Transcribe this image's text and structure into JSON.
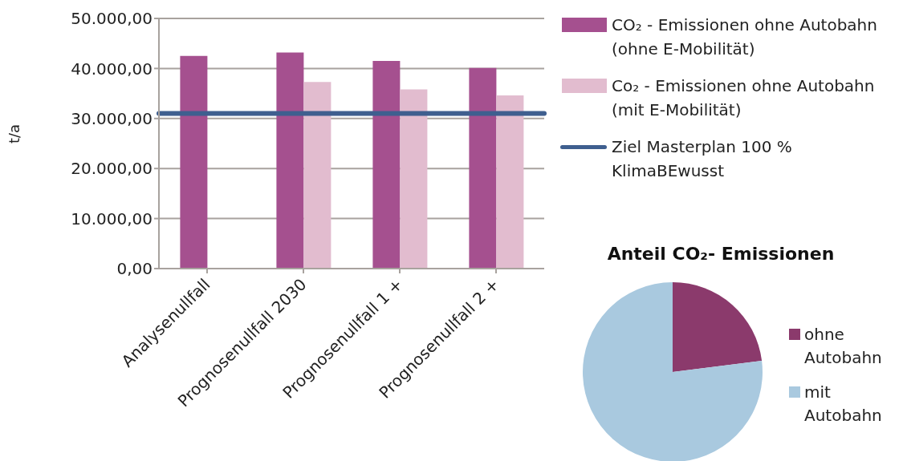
{
  "chart_data": [
    {
      "type": "bar",
      "ylabel": "t/a",
      "categories": [
        "Analysenullfall",
        "Prognosenullfall 2030",
        "Prognosenullfall 1 +",
        "Prognosenullfall 2 +"
      ],
      "series": [
        {
          "name": "CO₂ - Emissionen ohne Autobahn (ohne E-Mobilität)",
          "color": "#a5508f",
          "values": [
            42500,
            43200,
            41500,
            40100
          ]
        },
        {
          "name": "Co₂ - Emissionen ohne Autobahn (mit E-Mobilität)",
          "color": "#e2bccf",
          "values": [
            null,
            37300,
            35800,
            34600
          ]
        }
      ],
      "ref_lines": [
        {
          "axis": "y",
          "value": 31000,
          "label": "Ziel Masterplan 100 % KlimaBEwusst",
          "color": "#3f5f8f"
        }
      ],
      "ylim": [
        0,
        50000
      ],
      "yticks": [
        {
          "value": 0,
          "label": "0,00"
        },
        {
          "value": 10000,
          "label": "10.000,00"
        },
        {
          "value": 20000,
          "label": "20.000,00"
        },
        {
          "value": 30000,
          "label": "30.000,00"
        },
        {
          "value": 40000,
          "label": "40.000,00"
        },
        {
          "value": 50000,
          "label": "50.000,00"
        }
      ],
      "grid": "y",
      "legend": "right"
    },
    {
      "type": "pie",
      "title": "Anteil CO₂- Emissionen",
      "categories": [
        "ohne Autobahn",
        "mit Autobahn"
      ],
      "values": [
        23,
        77
      ],
      "colors": [
        "#8b3a6c",
        "#a9c9df"
      ],
      "legend": "right"
    }
  ]
}
